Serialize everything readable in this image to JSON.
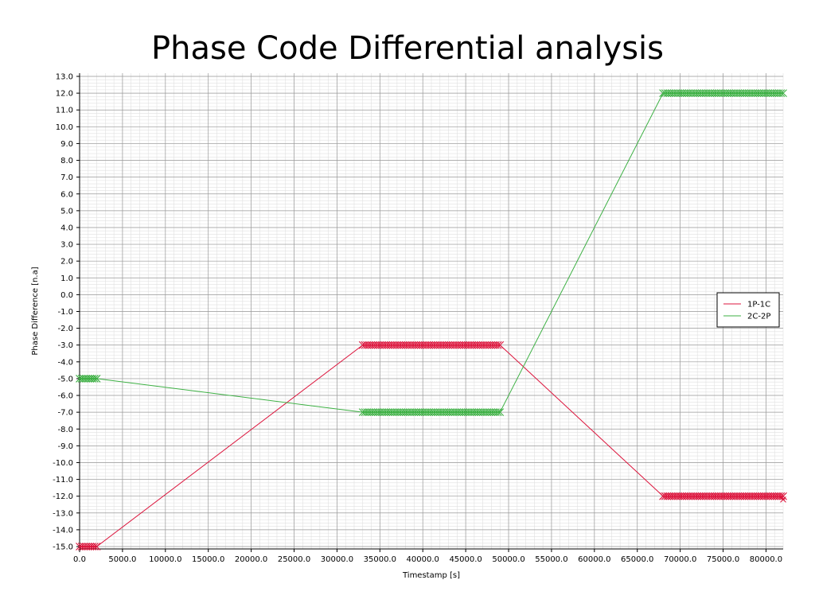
{
  "chart_data": {
    "type": "line",
    "title": "Phase Code Differential analysis",
    "xlabel": "Timestamp [s]",
    "ylabel": "Phase Difference [n.a]",
    "xlim": [
      0,
      82000
    ],
    "ylim": [
      -15,
      13
    ],
    "x_ticks": [
      0,
      5000,
      10000,
      15000,
      20000,
      25000,
      30000,
      35000,
      40000,
      45000,
      50000,
      55000,
      60000,
      65000,
      70000,
      75000,
      80000
    ],
    "x_tick_labels": [
      "0.0",
      "5000.0",
      "10000.0",
      "15000.0",
      "20000.0",
      "25000.0",
      "30000.0",
      "35000.0",
      "40000.0",
      "45000.0",
      "50000.0",
      "55000.0",
      "60000.0",
      "65000.0",
      "70000.0",
      "75000.0",
      "80000.0"
    ],
    "y_ticks": [
      13,
      12,
      11,
      10,
      9,
      8,
      7,
      6,
      5,
      4,
      3,
      2,
      1,
      0,
      -1,
      -2,
      -3,
      -4,
      -5,
      -6,
      -7,
      -8,
      -9,
      -10,
      -11,
      -12,
      -13,
      -14,
      -15
    ],
    "y_tick_labels": [
      "13.0",
      "12.0",
      "11.0",
      "10.0",
      "9.0",
      "8.0",
      "7.0",
      "6.0",
      "5.0",
      "4.0",
      "3.0",
      "2.0",
      "1.0",
      "0.0",
      "-1.0",
      "-2.0",
      "-3.0",
      "-4.0",
      "-5.0",
      "-6.0",
      "-7.0",
      "-8.0",
      "-9.0",
      "-10.0",
      "-11.0",
      "-12.0",
      "-13.0",
      "-14.0",
      "-15.0"
    ],
    "grid": true,
    "minor_grid": true,
    "legend_position": "right",
    "marker": "x",
    "series": [
      {
        "name": "1P-1C",
        "color": "#dc143c",
        "segments": [
          {
            "x_start": 0,
            "x_end": 2000,
            "y": -15
          },
          {
            "x_start": 33000,
            "x_end": 49000,
            "y": -3
          },
          {
            "x_start": 68000,
            "x_end": 82000,
            "y": -12
          }
        ],
        "outlier": {
          "x": 82000,
          "y": -12.2
        }
      },
      {
        "name": "2C-2P",
        "color": "#3cb043",
        "segments": [
          {
            "x_start": 0,
            "x_end": 2000,
            "y": -5
          },
          {
            "x_start": 33000,
            "x_end": 49000,
            "y": -7
          },
          {
            "x_start": 68000,
            "x_end": 82000,
            "y": 12
          }
        ]
      }
    ]
  }
}
